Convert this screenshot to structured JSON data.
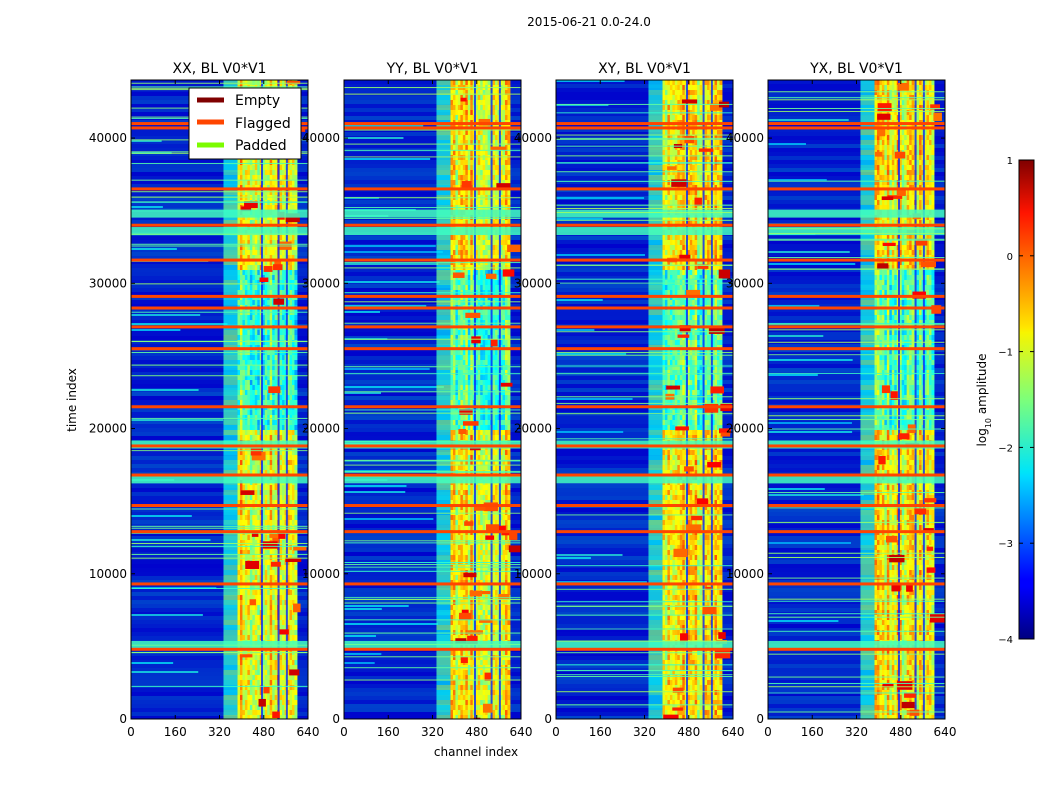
{
  "chart_data": {
    "type": "heatmap",
    "suptitle": "2015-06-21 0.0-24.0",
    "panels": [
      {
        "title": "XX, BL V0*V1",
        "seed": 11
      },
      {
        "title": "YY, BL V0*V1",
        "seed": 23
      },
      {
        "title": "XY, BL V0*V1",
        "seed": 37
      },
      {
        "title": "YX, BL V0*V1",
        "seed": 53
      }
    ],
    "xlabel": "channel index",
    "ylabel": "time index",
    "x_ticks": [
      0,
      160,
      320,
      480,
      640
    ],
    "y_ticks": [
      0,
      10000,
      20000,
      30000,
      40000
    ],
    "xlim": [
      0,
      640
    ],
    "ylim": [
      0,
      44000
    ],
    "colorbar": {
      "label": "log10 amplitude",
      "label_prefix": "log",
      "label_sub": "10",
      "label_suffix": " amplitude",
      "ticks": [
        1,
        0,
        -1,
        -2,
        -3,
        -4
      ],
      "tick_labels": [
        "1",
        "0",
        "−1",
        "−2",
        "−3",
        "−4"
      ],
      "range": [
        -4,
        1
      ],
      "colormap": "jet"
    },
    "legend": [
      {
        "label": "Empty",
        "color": "#800000"
      },
      {
        "label": "Flagged",
        "color": "#ff4500"
      },
      {
        "label": "Padded",
        "color": "#7cfc00"
      }
    ],
    "signal_band_channels": [
      385,
      600
    ],
    "flagged_rows": [
      4800,
      9300,
      12900,
      14700,
      16800,
      18800,
      21500,
      25500,
      27000,
      28300,
      29100,
      31600,
      34000,
      36500,
      40700,
      41000
    ],
    "dense_rfi_rows": [
      33600,
      34800,
      16500,
      5100,
      18900
    ],
    "colors": {
      "background": "#000090",
      "flagged": "#ff4500",
      "frame": "#000000"
    }
  }
}
